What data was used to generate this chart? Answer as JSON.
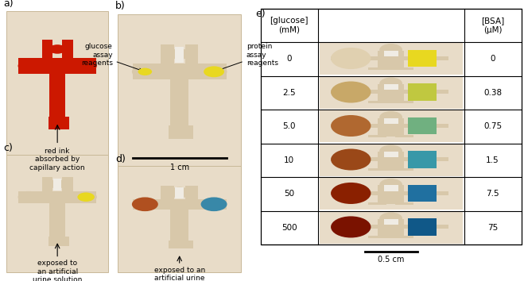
{
  "fig_width": 6.59,
  "fig_height": 3.54,
  "dpi": 100,
  "bg_color": "#ffffff",
  "paper_bg": "#e8dcc8",
  "paper_border": "#c8b898",
  "channel_color": "#d8c8aa",
  "white_channel": "#f0ece4",
  "red_ink": "#cc1800",
  "yellow_reagent": "#e8d820",
  "panel_label_fontsize": 9,
  "annot_fontsize": 6.5,
  "table_fontsize": 7.5,
  "scalebar_fontsize": 7,
  "table_glucose_values": [
    "0",
    "2.5",
    "5.0",
    "10",
    "50",
    "500"
  ],
  "table_bsa_values": [
    "0",
    "0.38",
    "0.75",
    "1.5",
    "7.5",
    "75"
  ],
  "glucose_colors": [
    "#e0d0b0",
    "#c8a868",
    "#b06830",
    "#9a4818",
    "#8a2000",
    "#7a1200"
  ],
  "protein_colors_left": [
    "#e8d820",
    "#d8c820",
    "#c8b820",
    "#b8a820",
    "#a89820",
    "#988820"
  ],
  "protein_colors_right": [
    "#e8d820",
    "#a8c890",
    "#60a8b0",
    "#3090a8",
    "#2078a0",
    "#106898"
  ],
  "teal_colors": [
    "#e8d820",
    "#c0c840",
    "#70b080",
    "#3898a8",
    "#2070a0",
    "#105888"
  ]
}
